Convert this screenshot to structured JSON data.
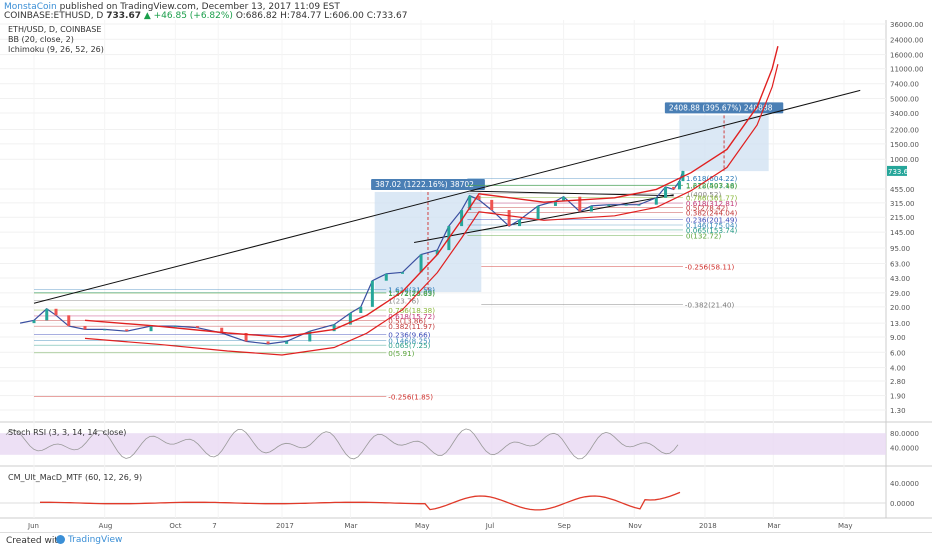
{
  "header": {
    "author": "MonstaCoin",
    "published_text": "published on TradingView.com, December 13, 2017 11:09 EST",
    "symbol_line": "COINBASE:ETHUSD, D",
    "price": "733.67",
    "change": "▲ +46.85 (+6.82%)",
    "ohlc": "O:686.82 H:784.77 L:606.00 C:733.67"
  },
  "legend": {
    "symbol": "ETH/USD, D, COINBASE",
    "bb": "BB (20, close, 2)",
    "ichimoku": "Ichimoku (9, 26, 52, 26)"
  },
  "footer": {
    "created_with": "Created with",
    "brand": "TradingView"
  },
  "colors": {
    "up": "#26a69a",
    "down": "#ef5350",
    "curve": "#e02020",
    "box": "#cfe0f1",
    "label_bg": "#4a7fb5",
    "rsi_fill": "#e8d8f3"
  },
  "chart_data": [
    {
      "type": "line",
      "title": "ETH/USD, D, COINBASE",
      "y_scale": "log",
      "ylim": [
        1.3,
        36000
      ],
      "y_ticks": [
        "36000.00",
        "24000.00",
        "16000.00",
        "11000.00",
        "7400.00",
        "5000.00",
        "3400.00",
        "2200.00",
        "1500.00",
        "1000.00",
        "455.00",
        "315.00",
        "215.00",
        "145.00",
        "95.00",
        "63.00",
        "43.00",
        "29.00",
        "20.00",
        "13.00",
        "9.00",
        "6.00",
        "4.00",
        "2.80",
        "1.90",
        "1.30"
      ],
      "y_tick_values": [
        36000,
        24000,
        16000,
        11000,
        7400,
        5000,
        3400,
        2200,
        1500,
        1000,
        455,
        315,
        215,
        145,
        95,
        63,
        43,
        29,
        20,
        13,
        9,
        6,
        4,
        2.8,
        1.9,
        1.3
      ],
      "current_price_label": "733.67",
      "x_ticks": [
        "Jun",
        "Aug",
        "Oct",
        "7",
        "2017",
        "Mar",
        "May",
        "Jul",
        "Sep",
        "Nov",
        "2018",
        "Mar",
        "May"
      ],
      "x_tick_dates": [
        "2016-06-01",
        "2016-08-01",
        "2016-10-01",
        "2016-11-07",
        "2017-01-01",
        "2017-03-01",
        "2017-05-01",
        "2017-07-01",
        "2017-09-01",
        "2017-11-01",
        "2018-01-01",
        "2018-03-01",
        "2018-05-01"
      ],
      "series": [
        {
          "dates": [
            "2016-05-20",
            "2016-06-01",
            "2016-06-12",
            "2016-06-20",
            "2016-07-01",
            "2016-07-15",
            "2016-08-01",
            "2016-08-20",
            "2016-09-10",
            "2016-10-01",
            "2016-10-20",
            "2016-11-10",
            "2016-12-01",
            "2016-12-20",
            "2017-01-05",
            "2017-01-25",
            "2017-02-15",
            "2017-03-01",
            "2017-03-10",
            "2017-03-20",
            "2017-04-01",
            "2017-04-15",
            "2017-05-01",
            "2017-05-15",
            "2017-05-25",
            "2017-06-05",
            "2017-06-12",
            "2017-06-20",
            "2017-07-01",
            "2017-07-16",
            "2017-07-25",
            "2017-08-10",
            "2017-08-25",
            "2017-09-01",
            "2017-09-15",
            "2017-09-25",
            "2017-10-10",
            "2017-10-25",
            "2017-11-05",
            "2017-11-20",
            "2017-11-28",
            "2017-12-05",
            "2017-12-10",
            "2017-12-13"
          ],
          "values": [
            13,
            14,
            19,
            16,
            12,
            11,
            11,
            10.5,
            12,
            12,
            11.5,
            10,
            8,
            7.5,
            8,
            10.5,
            12.5,
            17,
            20,
            40,
            48,
            50,
            80,
            90,
            170,
            260,
            380,
            340,
            260,
            170,
            200,
            290,
            330,
            370,
            250,
            290,
            300,
            300,
            300,
            360,
            480,
            450,
            560,
            733
          ]
        }
      ],
      "red_curve": {
        "dates": [
          "2016-07-15",
          "2016-09-15",
          "2016-11-15",
          "2017-01-01",
          "2017-02-15",
          "2017-03-15",
          "2017-04-15",
          "2017-05-15",
          "2017-06-05",
          "2017-06-20",
          "2017-08-15",
          "2017-10-15",
          "2017-11-20",
          "2017-12-20",
          "2018-01-20",
          "2018-02-15",
          "2018-02-28",
          "2018-03-05"
        ],
        "values": [
          14,
          12,
          10,
          9,
          11,
          16,
          30,
          80,
          200,
          400,
          320,
          360,
          450,
          700,
          1300,
          4000,
          11000,
          20000
        ]
      },
      "trendlines": [
        {
          "from_date": "2016-06-01",
          "from_value": 22,
          "to_date": "2018-05-15",
          "to_value": 6200
        },
        {
          "from_date": "2017-06-12",
          "from_value": 430,
          "to_date": "2017-12-05",
          "to_value": 380
        },
        {
          "from_date": "2017-04-25",
          "from_value": 110,
          "to_date": "2017-12-05",
          "to_value": 390
        }
      ],
      "measure_boxes": [
        {
          "label": "387.02 (1222.16%) 38702",
          "from_date": "2017-03-22",
          "to_date": "2017-06-22",
          "low": 29.6,
          "high": 420
        },
        {
          "label": "2408.88 (395.67%) 240888",
          "from_date": "2017-12-10",
          "to_date": "2018-02-25",
          "low": 730,
          "high": 3200
        }
      ],
      "fib_upper": [
        {
          "label": "1.618(604.22)",
          "value": 604.22,
          "color": "#2a7ab8"
        },
        {
          "label": "1.272(503.16)",
          "value": 503.16,
          "color": "#2a9e8a"
        },
        {
          "label": "1.618(497.48)",
          "value": 497.48,
          "color": "#5aa33a"
        },
        {
          "label": "1(400.52)",
          "value": 400.52,
          "color": "#8a8a8a"
        },
        {
          "label": "0.786(361.77)",
          "value": 361.77,
          "color": "#8ab83a"
        },
        {
          "label": "0.618(312.81)",
          "value": 312.81,
          "color": "#c23a7a"
        },
        {
          "label": "0.5(278.42)",
          "value": 278.42,
          "color": "#c23a3a"
        },
        {
          "label": "0.382(244.04)",
          "value": 244.04,
          "color": "#c23a3a"
        },
        {
          "label": "0.236(201.49)",
          "value": 201.49,
          "color": "#3a4ab8"
        },
        {
          "label": "0.146(175.04)",
          "value": 175.04,
          "color": "#3a8ab8"
        },
        {
          "label": "0.065(153.74)",
          "value": 153.74,
          "color": "#2a9e8a"
        },
        {
          "label": "0(132.72)",
          "value": 132.72,
          "color": "#5aa33a"
        }
      ],
      "fib_far": [
        {
          "label": "-0.256(58.11)",
          "value": 58.11,
          "color": "#d0312d"
        },
        {
          "label": "-0.382(21.40)",
          "value": 21.4,
          "color": "#7a7a7a"
        }
      ],
      "fib_lower": [
        {
          "label": "1.618(31.58)",
          "value": 31.58,
          "color": "#2a7ab8"
        },
        {
          "label": "1.272(29.09)",
          "value": 29.09,
          "color": "#2a9e8a"
        },
        {
          "label": "1.272(28.83)",
          "value": 28.83,
          "color": "#5aa33a"
        },
        {
          "label": "1(23.76)",
          "value": 23.76,
          "color": "#8a8a8a"
        },
        {
          "label": "0.786(18.38)",
          "value": 18.38,
          "color": "#8ab83a"
        },
        {
          "label": "0.618(15.72)",
          "value": 15.72,
          "color": "#c23a7a"
        },
        {
          "label": "0.5(13.86)",
          "value": 13.86,
          "color": "#c23a3a"
        },
        {
          "label": "0.382(11.97)",
          "value": 11.97,
          "color": "#c23a3a"
        },
        {
          "label": "0.236(9.66)",
          "value": 9.66,
          "color": "#3a4ab8"
        },
        {
          "label": "0.146(8.25)",
          "value": 8.25,
          "color": "#3a8ab8"
        },
        {
          "label": "0.065(7.25)",
          "value": 7.25,
          "color": "#2a9e8a"
        },
        {
          "label": "0(5.91)",
          "value": 5.91,
          "color": "#5aa33a"
        },
        {
          "label": "-0.256(1.85)",
          "value": 1.85,
          "color": "#d0312d"
        }
      ]
    },
    {
      "type": "line",
      "title": "Stoch RSI (3, 3, 14, 14, close)",
      "ylim": [
        0,
        100
      ],
      "y_ticks": [
        "80.0000",
        "40.0000"
      ],
      "y_tick_values": [
        80,
        40
      ],
      "band": [
        20,
        80
      ]
    },
    {
      "type": "bar",
      "title": "CM_Ult_MacD_MTF (60, 12, 26, 9)",
      "y_ticks": [
        "40.0000",
        "0.0000"
      ],
      "y_tick_values": [
        40,
        0
      ]
    }
  ]
}
